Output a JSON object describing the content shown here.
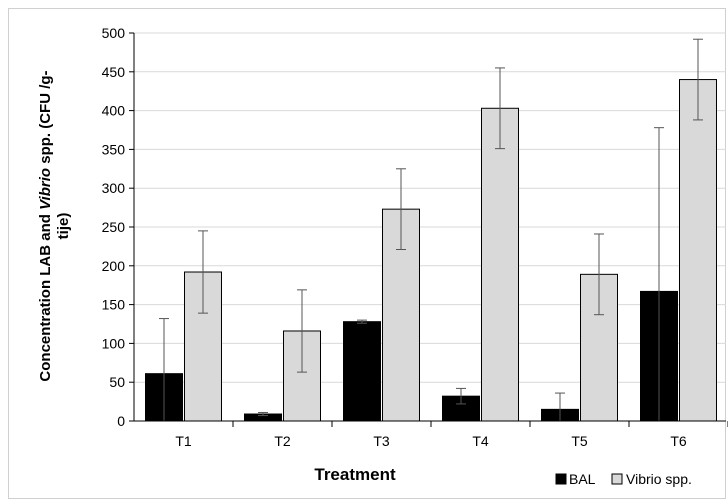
{
  "chart_data": {
    "type": "bar",
    "categories": [
      "T1",
      "T2",
      "T3",
      "T4",
      "T5",
      "T6"
    ],
    "series": [
      {
        "name": "BAL",
        "color": "#000000",
        "values": [
          61,
          9,
          128,
          32,
          15,
          167
        ],
        "errors": [
          71,
          2,
          2,
          10,
          21,
          211
        ]
      },
      {
        "name": "Vibrio spp.",
        "color": "#d9d9d9",
        "values": [
          192,
          116,
          273,
          403,
          189,
          440
        ],
        "errors": [
          53,
          53,
          52,
          52,
          52,
          52
        ]
      }
    ],
    "ylim": [
      0,
      500
    ],
    "yticks": [
      0,
      50,
      100,
      150,
      200,
      250,
      300,
      350,
      400,
      450,
      500
    ],
    "xlabel": "Treatment",
    "ylabel_line1_prefix": "Concentration LAB and ",
    "ylabel_line1_italic": "Vibrio",
    "ylabel_line1_suffix": " spp. (CFU /g-",
    "ylabel_line2": "tije)",
    "grid": true,
    "legend_position": "bottom-right"
  }
}
